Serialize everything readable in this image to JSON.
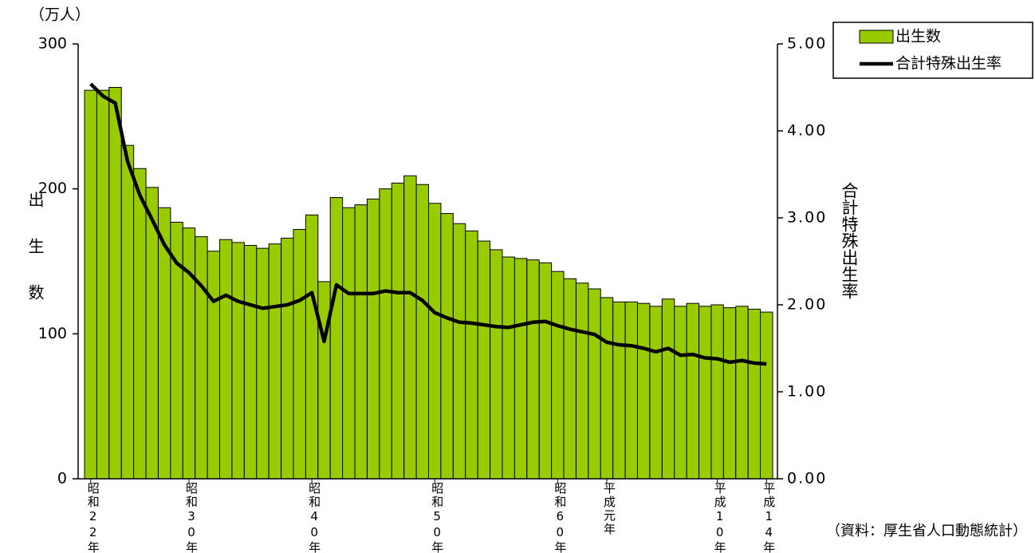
{
  "chart_data": {
    "type": "bar",
    "unit_label": "（万人）",
    "ylabel": "出生数",
    "y2label": "合計特殊出生率",
    "source": "（資料：厚生省人口動態統計）",
    "categories": [
      "昭和22年",
      null,
      null,
      null,
      null,
      null,
      null,
      null,
      "昭和30年",
      null,
      null,
      null,
      null,
      null,
      null,
      null,
      null,
      null,
      "昭和40年",
      null,
      null,
      null,
      null,
      null,
      null,
      null,
      null,
      null,
      "昭和50年",
      null,
      null,
      null,
      null,
      null,
      null,
      null,
      null,
      null,
      "昭和60年",
      null,
      null,
      null,
      "平成元年",
      null,
      null,
      null,
      null,
      null,
      null,
      null,
      null,
      "平成10年",
      null,
      null,
      null,
      "平成14年"
    ],
    "series": [
      {
        "name": "出生数",
        "type": "bar",
        "color": "#99cc00",
        "values": [
          268,
          268,
          270,
          230,
          214,
          201,
          187,
          177,
          173,
          167,
          157,
          165,
          163,
          161,
          159,
          162,
          166,
          172,
          182,
          136,
          194,
          187,
          189,
          193,
          200,
          204,
          209,
          203,
          190,
          183,
          176,
          171,
          164,
          158,
          153,
          152,
          151,
          149,
          143,
          138,
          135,
          131,
          125,
          122,
          122,
          121,
          119,
          124,
          119,
          121,
          119,
          120,
          118,
          119,
          117,
          115
        ]
      },
      {
        "name": "合計特殊出生率",
        "type": "line",
        "axis": "y2",
        "color": "#000000",
        "values": [
          4.54,
          4.4,
          4.32,
          3.65,
          3.26,
          2.98,
          2.69,
          2.48,
          2.37,
          2.22,
          2.04,
          2.11,
          2.04,
          2.0,
          1.96,
          1.98,
          2.0,
          2.05,
          2.14,
          1.58,
          2.23,
          2.13,
          2.13,
          2.13,
          2.16,
          2.14,
          2.14,
          2.05,
          1.91,
          1.85,
          1.8,
          1.79,
          1.77,
          1.75,
          1.74,
          1.77,
          1.8,
          1.81,
          1.76,
          1.72,
          1.69,
          1.66,
          1.57,
          1.54,
          1.53,
          1.5,
          1.46,
          1.5,
          1.42,
          1.43,
          1.39,
          1.38,
          1.34,
          1.36,
          1.33,
          1.32
        ]
      }
    ],
    "ylim": [
      0,
      300
    ],
    "yticks": [
      0,
      100,
      200,
      300
    ],
    "y2lim": [
      0,
      5
    ],
    "y2ticks": [
      {
        "value": 0,
        "label": "0.00"
      },
      {
        "value": 1,
        "label": "1.00"
      },
      {
        "value": 2,
        "label": "2.00"
      },
      {
        "value": 3,
        "label": "3.00"
      },
      {
        "value": 4,
        "label": "4.00"
      },
      {
        "value": 5,
        "label": "5.00"
      }
    ],
    "grid": false,
    "legend": "upper right"
  }
}
